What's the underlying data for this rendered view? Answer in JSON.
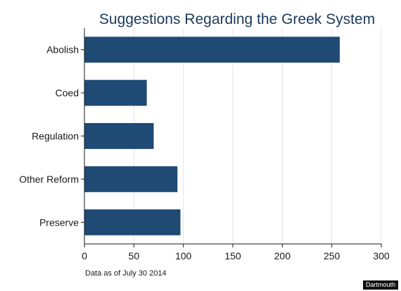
{
  "chart_data": {
    "type": "bar",
    "orientation": "horizontal",
    "title": "Suggestions Regarding the Greek System",
    "categories": [
      "Abolish",
      "Coed",
      "Regulation",
      "Other Reform",
      "Preserve"
    ],
    "values": [
      258,
      63,
      70,
      94,
      97
    ],
    "xlabel": "",
    "ylabel": "",
    "xlim": [
      0,
      300
    ],
    "xticks": [
      "0",
      "50",
      "100",
      "150",
      "200",
      "250",
      "300"
    ],
    "grid": true,
    "bar_color": "#1f4a74",
    "grid_color": "#e6e6e6",
    "note": "Data as of July 30 2014"
  },
  "watermark": "Dartmouth"
}
